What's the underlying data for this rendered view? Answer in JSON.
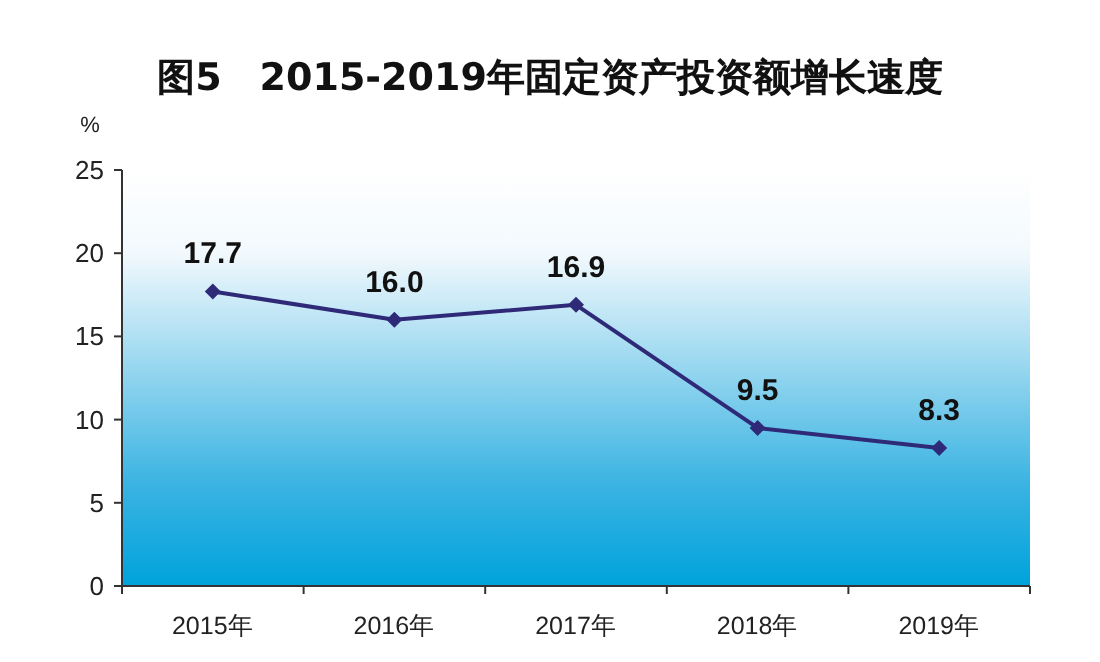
{
  "chart_data": {
    "type": "line",
    "title": "图5　2015-2019年固定资产投资额增长速度",
    "ylabel": "%",
    "categories": [
      "2015年",
      "2016年",
      "2017年",
      "2018年",
      "2019年"
    ],
    "series": [
      {
        "color": "#2e2a78",
        "values": [
          17.7,
          16.0,
          16.9,
          9.5,
          8.3
        ]
      }
    ],
    "value_labels": [
      "17.7",
      "16.0",
      "16.9",
      "9.5",
      "8.3"
    ],
    "ylim": [
      0,
      25
    ],
    "yticks": [
      0,
      5,
      10,
      15,
      20,
      25
    ],
    "marker": "diamond",
    "grid": false
  }
}
